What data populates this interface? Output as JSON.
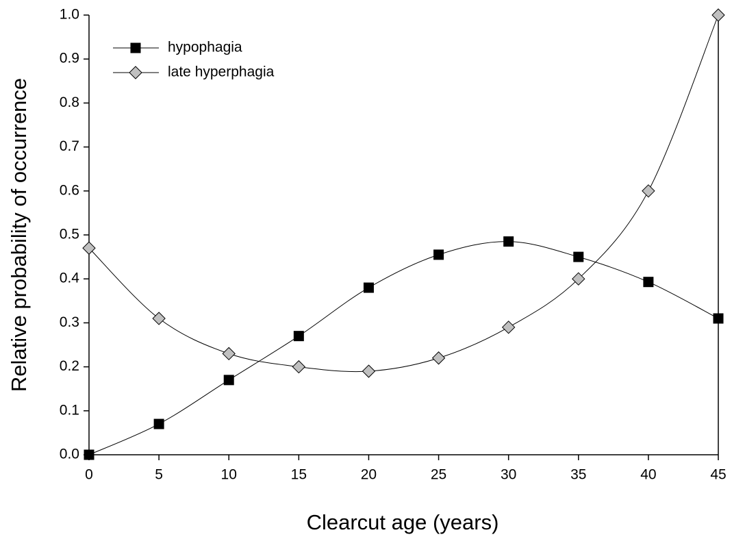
{
  "chart_data": {
    "type": "line",
    "xlabel": "Clearcut age (years)",
    "ylabel": "Relative probability of occurrence",
    "x": [
      0,
      5,
      10,
      15,
      20,
      25,
      30,
      35,
      40,
      45
    ],
    "series": [
      {
        "name": "hypophagia",
        "color": "#000000",
        "marker": "square",
        "values": [
          0,
          0.07,
          0.17,
          0.27,
          0.38,
          0.455,
          0.485,
          0.45,
          0.393,
          0.31
        ]
      },
      {
        "name": "late hyperphagia",
        "color": "#c0c0c0",
        "marker": "diamond",
        "values": [
          0.47,
          0.31,
          0.23,
          0.2,
          0.19,
          0.22,
          0.29,
          0.4,
          0.6,
          1.0
        ]
      }
    ],
    "xlim": [
      0,
      45
    ],
    "xticks": [
      0,
      5,
      10,
      15,
      20,
      25,
      30,
      35,
      40,
      45
    ],
    "ylim": [
      0,
      1
    ],
    "yticks": [
      {
        "value": 0,
        "label": "0.0"
      },
      0.1,
      0.2,
      0.3,
      0.4,
      0.5,
      0.6,
      0.7,
      0.8,
      0.9,
      {
        "value": 1,
        "label": "1.0"
      }
    ],
    "legend": "upper left"
  }
}
